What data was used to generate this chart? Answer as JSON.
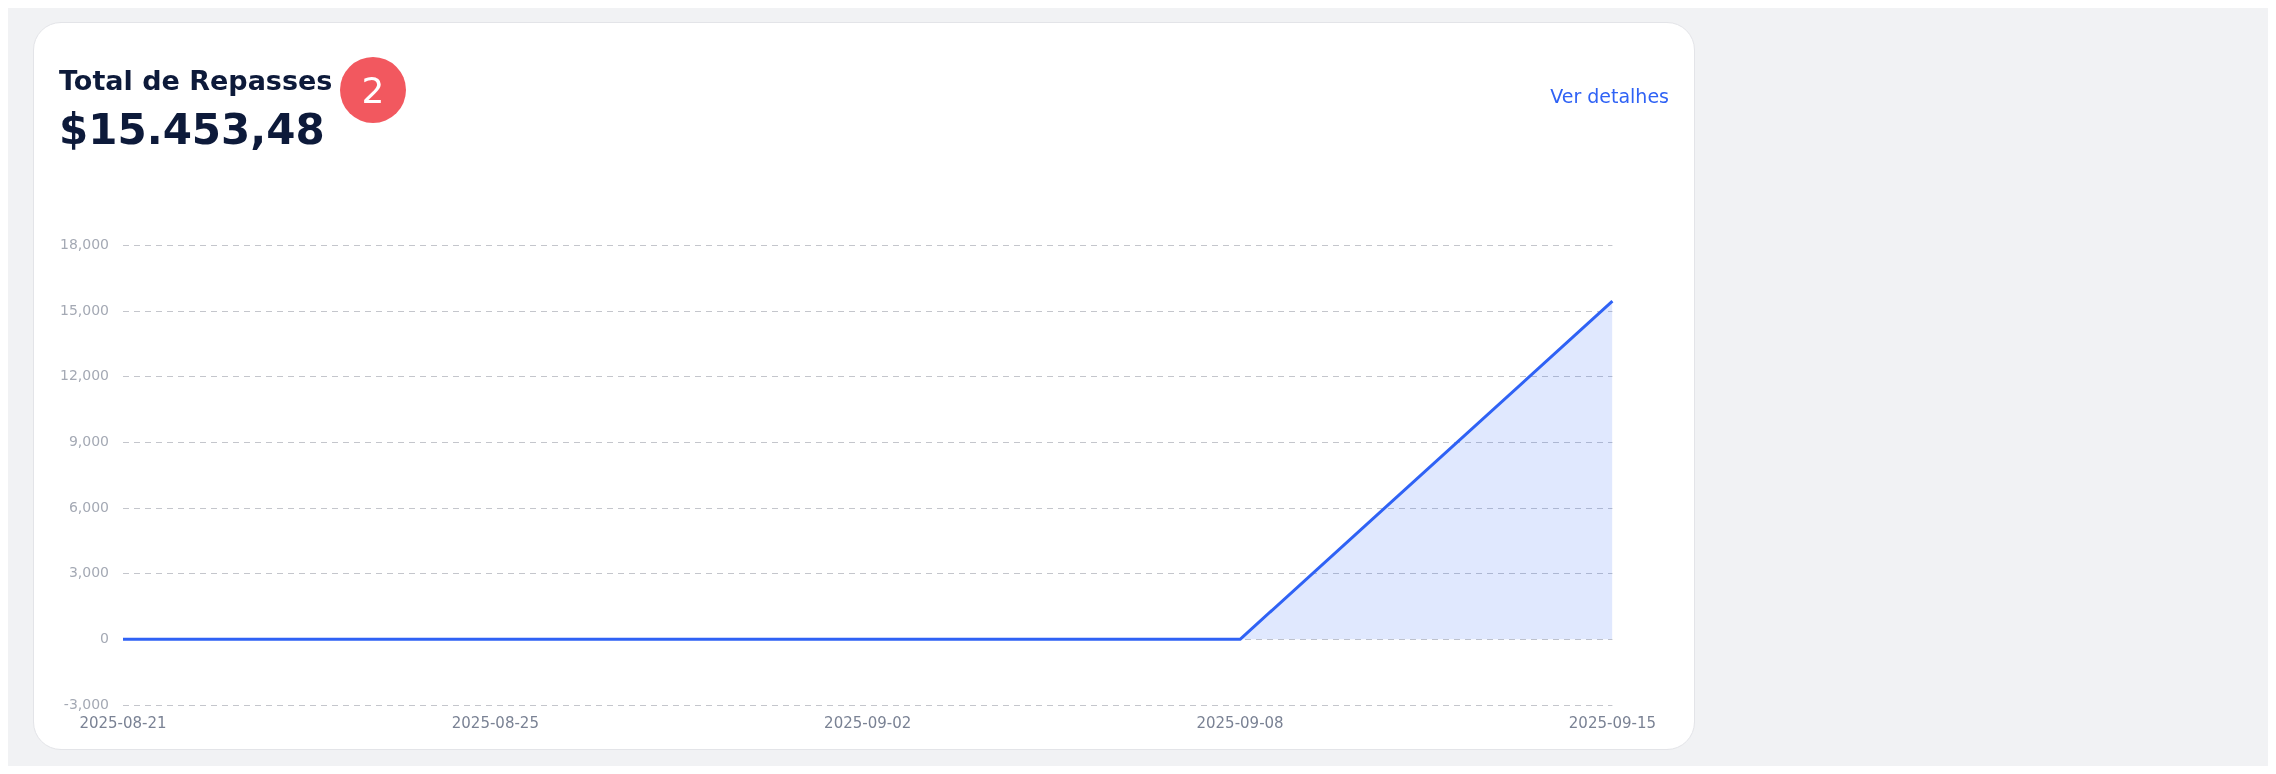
{
  "chart_data": {
    "type": "area",
    "title": "Total de Repasses",
    "subtitle": "$15.453,48",
    "annotations": [
      "2",
      "Ver detalhes"
    ],
    "categories": [
      "2025-08-21",
      "2025-08-25",
      "2025-09-02",
      "2025-09-08",
      "2025-09-15"
    ],
    "values": [
      0,
      0,
      0,
      0,
      15450
    ],
    "color": "#2f62f5",
    "ylim": [
      -3000,
      18000
    ],
    "yticks": [
      {
        "value": -3000,
        "label": "-3,000"
      },
      0,
      {
        "value": 3000,
        "label": "3,000"
      },
      {
        "value": 6000,
        "label": "6,000"
      },
      {
        "value": 9000,
        "label": "9,000"
      },
      {
        "value": 12000,
        "label": "12,000"
      },
      {
        "value": 15000,
        "label": "15,000"
      },
      {
        "value": 18000,
        "label": "18,000"
      }
    ],
    "grid": "y",
    "legend": false,
    "marker": "none",
    "line_style": "solid"
  }
}
